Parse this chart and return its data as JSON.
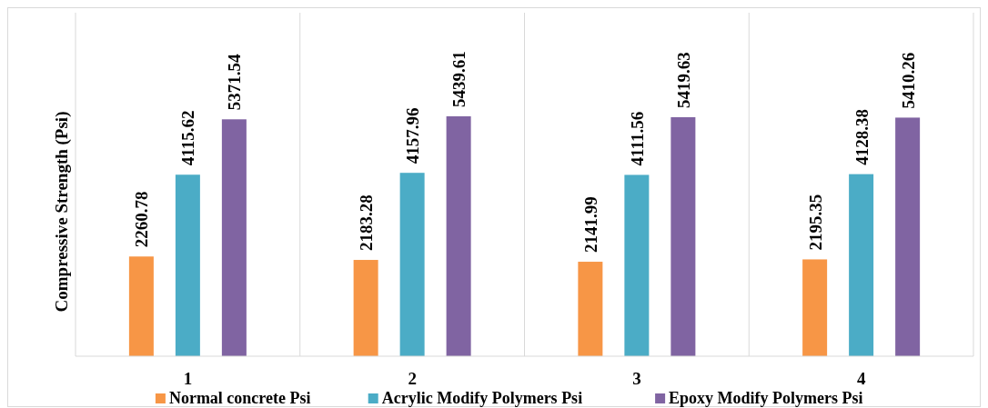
{
  "chart_data": {
    "type": "bar",
    "ylabel": "Compressive Strength (Psi)",
    "categories": [
      "1",
      "2",
      "3",
      "4"
    ],
    "series": [
      {
        "name": "Normal concrete Psi",
        "color": "#f79646",
        "values": [
          2260.78,
          2183.28,
          2141.99,
          2195.35
        ]
      },
      {
        "name": "Acrylic Modify Polymers Psi",
        "color": "#4bacc6",
        "values": [
          4115.62,
          4157.96,
          4111.56,
          4128.38
        ]
      },
      {
        "name": "Epoxy Modify Polymers Psi",
        "color": "#8064a2",
        "values": [
          5371.54,
          5439.61,
          5419.63,
          5410.26
        ]
      }
    ],
    "data_labels": true,
    "grid": "x",
    "legend": "bottom"
  }
}
